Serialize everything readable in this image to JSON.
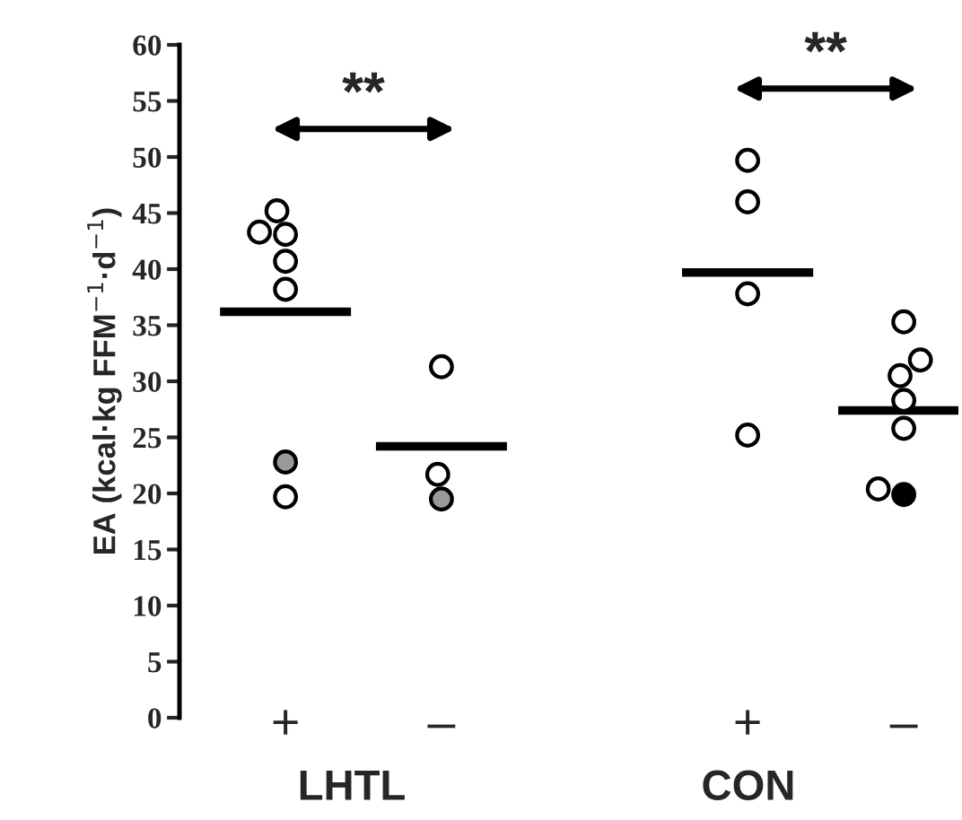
{
  "chart_data": [
    {
      "type": "scatter",
      "xlabel": "LHTL",
      "ylabel": "EA (kcal·kg FFM$^{−1}$·d$^{−1}$)",
      "categories": [
        "+",
        "–"
      ],
      "ylim": [
        0,
        60
      ],
      "yticks": [
        0,
        5,
        10,
        15,
        20,
        25,
        30,
        35,
        40,
        45,
        50,
        55,
        60
      ],
      "marker": "circle",
      "series": [
        {
          "color": "#ffffff",
          "x": [
            "+",
            "+",
            "+",
            "+",
            "+",
            "+",
            "–",
            "–"
          ],
          "values": [
            43.1,
            43.3,
            45.2,
            40.7,
            38.2,
            19.7,
            31.3,
            21.7
          ]
        },
        {
          "color": "#999999",
          "x": [
            "+",
            "–"
          ],
          "values": [
            22.8,
            19.5
          ]
        }
      ],
      "ref_lines": [
        {
          "axis": "y",
          "value": 36.2,
          "color": "#000000"
        },
        {
          "axis": "y",
          "value": 24.2,
          "color": "#000000"
        }
      ],
      "annotations": [
        "**"
      ]
    },
    {
      "type": "scatter",
      "xlabel": "CON",
      "categories": [
        "+",
        "–"
      ],
      "ylim": [
        0,
        60
      ],
      "yticks": [
        0,
        5,
        10,
        15,
        20,
        25,
        30,
        35,
        40,
        45,
        50,
        55,
        60
      ],
      "tick_labels": "x",
      "marker": "circle",
      "series": [
        {
          "color": "#ffffff",
          "x": [
            "+",
            "+",
            "+",
            "+",
            "–",
            "–",
            "–",
            "–",
            "–",
            "–"
          ],
          "values": [
            49.7,
            46.0,
            37.8,
            25.2,
            35.3,
            31.9,
            30.5,
            28.3,
            25.8,
            20.4
          ]
        },
        {
          "color": "#000000",
          "x": [
            "–"
          ],
          "values": [
            19.9
          ]
        }
      ],
      "ref_lines": [
        {
          "axis": "y",
          "value": 39.7,
          "color": "#000000"
        },
        {
          "axis": "y",
          "value": 27.4,
          "color": "#000000"
        }
      ],
      "annotations": [
        "**"
      ]
    }
  ]
}
